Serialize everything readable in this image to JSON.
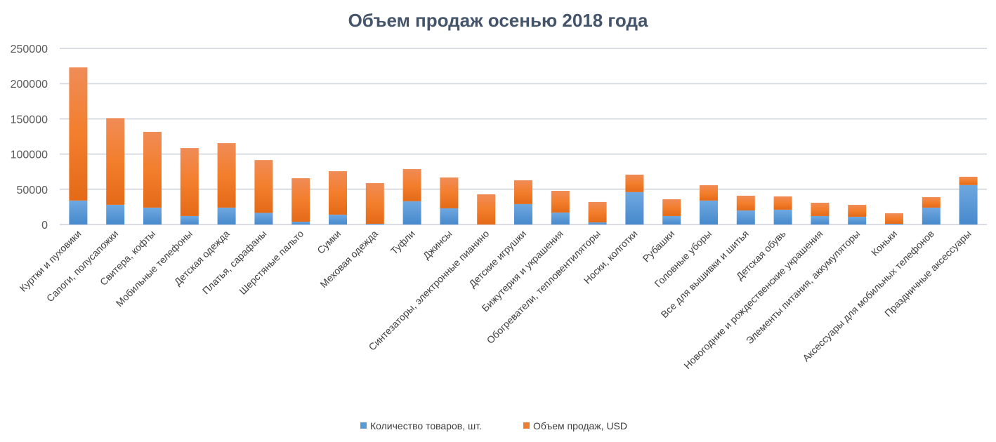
{
  "chart_data": {
    "type": "bar",
    "stacked": true,
    "title": "Объем продаж осенью 2018 года",
    "xlabel": "",
    "ylabel": "",
    "ylim": [
      0,
      250000
    ],
    "yticks": [
      0,
      50000,
      100000,
      150000,
      200000,
      250000
    ],
    "grid": true,
    "legend_position": "bottom",
    "categories": [
      "Куртки и пуховики",
      "Сапоги, полусапожки",
      "Свитера, кофты",
      "Мобильные телефоны",
      "Детская одежда",
      "Платья, сарафаны",
      "Шерстяные пальто",
      "Сумки",
      "Меховая одежда",
      "Туфли",
      "Джинсы",
      "Синтезаторы, электронные пианино",
      "Детские игрушки",
      "Бижутерия и украшения",
      "Обогреватели, тепловентиляторы",
      "Носки, колготки",
      "Рубашки",
      "Головные уборы",
      "Все для вышивки и шитья",
      "Детская обувь",
      "Новогодние и рождественские украшения",
      "Элементы питания, аккумуляторы",
      "Коньки",
      "Аксессуары для мобильных телефонов",
      "Праздничные аксессуары"
    ],
    "series": [
      {
        "name": "Количество товаров, шт.",
        "color": "#5b9bd5",
        "values": [
          34000,
          28000,
          24000,
          12000,
          24000,
          16500,
          4000,
          14000,
          1000,
          33000,
          23000,
          0,
          29000,
          17000,
          3000,
          46000,
          12000,
          34000,
          20000,
          21000,
          12000,
          11000,
          1000,
          24000,
          56000
        ]
      },
      {
        "name": "Объем продаж, USD",
        "color": "#ed7d31",
        "values": [
          189000,
          123000,
          107500,
          96500,
          91500,
          75000,
          61700,
          61700,
          57800,
          45700,
          43800,
          42900,
          33800,
          30800,
          28900,
          24800,
          23900,
          21800,
          20900,
          18900,
          18900,
          16900,
          15000,
          14900,
          11800
        ]
      }
    ]
  }
}
